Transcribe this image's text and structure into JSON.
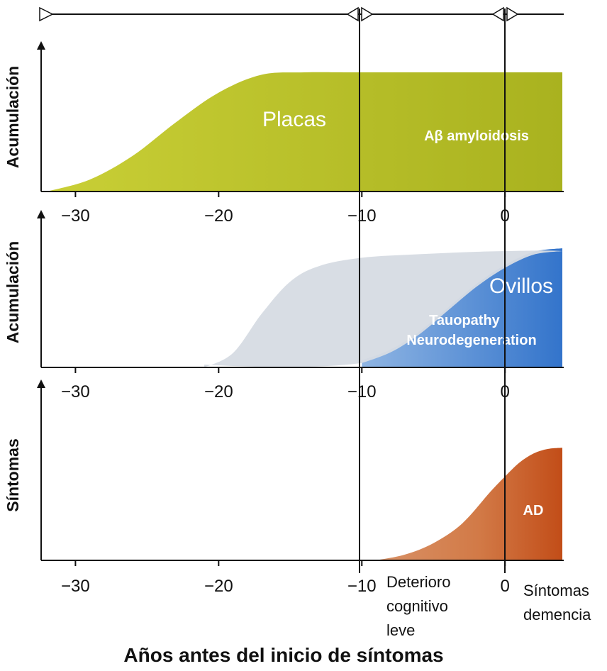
{
  "chart_data": [
    {
      "type": "area",
      "ylabel": "Acumulación",
      "x_ticks": [
        "−30",
        "−20",
        "−10",
        "0"
      ],
      "xlim": [
        -32,
        4
      ],
      "ylim": [
        0,
        1
      ],
      "labels": {
        "main": "Placas",
        "sub": "Aβ amyloidosis"
      },
      "series": [
        {
          "name": "Aβ amyloidosis",
          "x": [
            -32,
            -29,
            -26,
            -23,
            -20,
            -17,
            -14,
            -10,
            0,
            4
          ],
          "y": [
            0.0,
            0.1,
            0.3,
            0.58,
            0.83,
            0.98,
            1.0,
            1.0,
            1.0,
            1.0
          ]
        }
      ]
    },
    {
      "type": "area",
      "ylabel": "Acumulación",
      "x_ticks": [
        "−30",
        "−20",
        "−10",
        "0"
      ],
      "xlim": [
        -32,
        4
      ],
      "ylim": [
        0,
        1
      ],
      "labels": {
        "main": "Ovillos",
        "sub1": "Tauopathy",
        "sub2": "Neurodegeneration"
      },
      "series": [
        {
          "name": "Tauopathy Neurodegeneration",
          "x": [
            -10,
            -8,
            -6,
            -4,
            -2,
            0,
            2,
            4
          ],
          "y": [
            0.06,
            0.15,
            0.3,
            0.5,
            0.7,
            0.86,
            0.97,
            1.0
          ]
        },
        {
          "name": "Ovillos",
          "x": [
            -21,
            -19,
            -17,
            -15,
            -13,
            -10,
            -6,
            -2,
            2
          ],
          "y": [
            0.0,
            0.12,
            0.45,
            0.72,
            0.85,
            0.92,
            0.95,
            0.97,
            0.98
          ]
        }
      ]
    },
    {
      "type": "area",
      "ylabel": "Síntomas",
      "x_ticks": [
        "−30",
        "−20",
        "−10",
        "0"
      ],
      "xlim": [
        -32,
        4
      ],
      "ylim": [
        0,
        1
      ],
      "labels": {
        "main": "AD"
      },
      "series": [
        {
          "name": "AD",
          "x": [
            -9,
            -7,
            -5,
            -3,
            -1,
            0,
            1,
            2,
            3,
            4
          ],
          "y": [
            0.0,
            0.05,
            0.15,
            0.32,
            0.6,
            0.73,
            0.85,
            0.93,
            0.97,
            0.98
          ]
        }
      ]
    }
  ],
  "annotations": {
    "mci": [
      "Deterioro",
      "cognitivo",
      "leve"
    ],
    "dementia": [
      "Síntomas",
      "demencia"
    ]
  },
  "xlabel": "Años antes del inicio de síntomas",
  "colors": {
    "amyloid": "#b5bd2a",
    "tau_blue": "#3f7fcf",
    "tau_grey": "#d8dde4",
    "ad_light": "#d58c5c",
    "ad_dark": "#c7541f",
    "axis": "#111111"
  }
}
